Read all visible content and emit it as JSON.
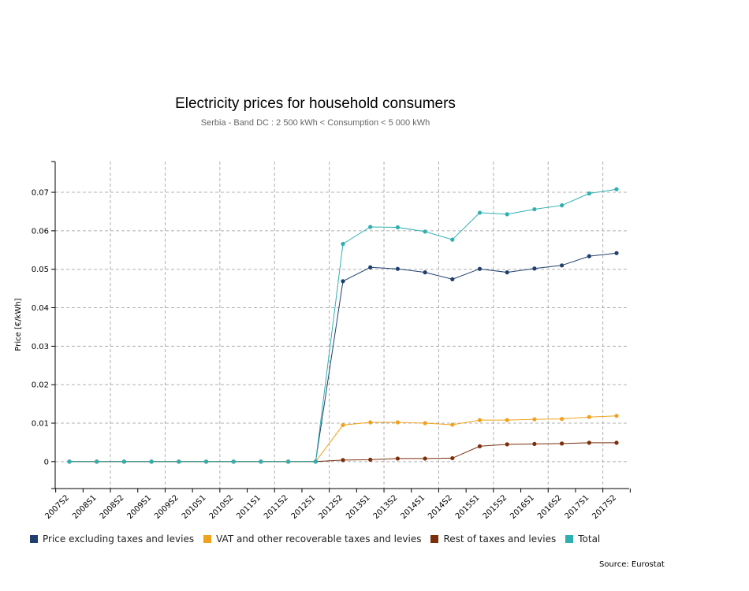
{
  "chart_data": {
    "type": "line",
    "title": "Electricity prices for household consumers",
    "subtitle": "Serbia - Band DC : 2 500 kWh < Consumption < 5 000 kWh",
    "xlabel": "",
    "ylabel": "Price [€/kWh]",
    "ylim": [
      -0.007,
      0.078
    ],
    "yticks": [
      0,
      0.01,
      0.02,
      0.03,
      0.04,
      0.05,
      0.06,
      0.07
    ],
    "ytick_labels": [
      "0",
      "0.01",
      "0.02",
      "0.03",
      "0.04",
      "0.05",
      "0.06",
      "0.07"
    ],
    "grid": true,
    "legend_position": "bottom",
    "categories": [
      "2007S2",
      "2008S1",
      "2008S2",
      "2009S1",
      "2009S2",
      "2010S1",
      "2010S2",
      "2011S1",
      "2011S2",
      "2012S1",
      "2012S2",
      "2013S1",
      "2013S2",
      "2014S1",
      "2014S2",
      "2015S1",
      "2015S2",
      "2016S1",
      "2016S2",
      "2017S1",
      "2017S2"
    ],
    "series": [
      {
        "name": "Price excluding taxes and levies",
        "color": "#1f3f6e",
        "values": [
          0,
          0,
          0,
          0,
          0,
          0,
          0,
          0,
          0,
          0,
          0.0469,
          0.0505,
          0.0501,
          0.0492,
          0.0474,
          0.0501,
          0.0492,
          0.0502,
          0.051,
          0.0534,
          0.0542
        ]
      },
      {
        "name": "VAT and other recoverable taxes and levies",
        "color": "#f0a21c",
        "values": [
          0,
          0,
          0,
          0,
          0,
          0,
          0,
          0,
          0,
          0,
          0.0095,
          0.0102,
          0.0102,
          0.01,
          0.0096,
          0.0108,
          0.0108,
          0.011,
          0.0111,
          0.0116,
          0.0119
        ]
      },
      {
        "name": "Rest of taxes and levies",
        "color": "#7b2f0d",
        "values": [
          0,
          0,
          0,
          0,
          0,
          0,
          0,
          0,
          0,
          0,
          0.0004,
          0.0005,
          0.0008,
          0.0008,
          0.0009,
          0.004,
          0.0045,
          0.0046,
          0.0047,
          0.0049,
          0.0049
        ]
      },
      {
        "name": "Total",
        "color": "#2fb0b0",
        "values": [
          0,
          0,
          0,
          0,
          0,
          0,
          0,
          0,
          0,
          0,
          0.0566,
          0.061,
          0.0609,
          0.0598,
          0.0577,
          0.0647,
          0.0643,
          0.0656,
          0.0666,
          0.0697,
          0.0708
        ]
      }
    ],
    "source": "Source: Eurostat"
  }
}
